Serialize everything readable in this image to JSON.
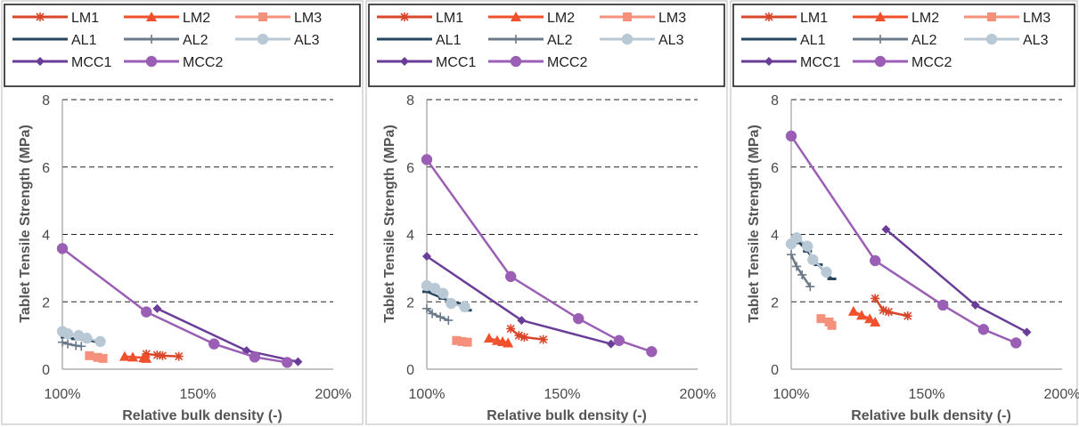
{
  "series_styles": {
    "LM1": {
      "color": "#d9472b",
      "marker": "star"
    },
    "LM2": {
      "color": "#f0502c",
      "marker": "triangle"
    },
    "LM3": {
      "color": "#f4907b",
      "marker": "square"
    },
    "AL1": {
      "color": "#26465f",
      "marker": "dash"
    },
    "AL2": {
      "color": "#6b7a8a",
      "marker": "plus"
    },
    "AL3": {
      "color": "#b8c8d4",
      "marker": "circle"
    },
    "MCC1": {
      "color": "#6a3d99",
      "marker": "diamond"
    },
    "MCC2": {
      "color": "#9a5fb5",
      "marker": "circle"
    }
  },
  "chart_data": [
    {
      "type": "line",
      "xlabel": "Relative bulk density (-)",
      "ylabel": "Tablet Tensile Strength (MPa)",
      "xlim": [
        1.0,
        2.0
      ],
      "ylim": [
        0,
        8
      ],
      "xticks": [
        "100%",
        "150%",
        "200%"
      ],
      "yticks": [
        "0",
        "2",
        "4",
        "6",
        "8"
      ],
      "grid": "horizontal dashed",
      "legend": [
        "LM1",
        "LM2",
        "LM3",
        "AL1",
        "AL2",
        "AL3",
        "MCC1",
        "MCC2"
      ],
      "legend_position": "top",
      "series": [
        {
          "name": "LM1",
          "x": [
            1.31,
            1.35,
            1.37,
            1.43
          ],
          "y": [
            0.45,
            0.42,
            0.4,
            0.38
          ]
        },
        {
          "name": "LM2",
          "x": [
            1.23,
            1.26,
            1.3,
            1.31
          ],
          "y": [
            0.38,
            0.36,
            0.34,
            0.32
          ]
        },
        {
          "name": "LM3",
          "x": [
            1.1,
            1.13,
            1.15
          ],
          "y": [
            0.4,
            0.35,
            0.32
          ]
        },
        {
          "name": "AL1",
          "x": [
            1.01,
            1.05,
            1.1,
            1.14
          ],
          "y": [
            0.95,
            0.9,
            0.85,
            0.78
          ]
        },
        {
          "name": "AL2",
          "x": [
            1.0,
            1.02,
            1.05,
            1.07
          ],
          "y": [
            0.8,
            0.75,
            0.7,
            0.68
          ]
        },
        {
          "name": "AL3",
          "x": [
            1.0,
            1.02,
            1.06,
            1.09,
            1.14
          ],
          "y": [
            1.12,
            1.05,
            1.0,
            0.92,
            0.82
          ]
        },
        {
          "name": "MCC1",
          "x": [
            1.35,
            1.68,
            1.87
          ],
          "y": [
            1.8,
            0.55,
            0.22
          ]
        },
        {
          "name": "MCC2",
          "x": [
            1.0,
            1.31,
            1.56,
            1.71,
            1.83
          ],
          "y": [
            3.58,
            1.7,
            0.75,
            0.36,
            0.2
          ]
        }
      ]
    },
    {
      "type": "line",
      "xlabel": "Relative bulk density (-)",
      "ylabel": "Tablet Tensile Strength (MPa)",
      "xlim": [
        1.0,
        2.0
      ],
      "ylim": [
        0,
        8
      ],
      "xticks": [
        "100%",
        "150%",
        "200%"
      ],
      "yticks": [
        "0",
        "2",
        "4",
        "6",
        "8"
      ],
      "grid": "horizontal dashed",
      "legend": [
        "LM1",
        "LM2",
        "LM3",
        "AL1",
        "AL2",
        "AL3",
        "MCC1",
        "MCC2"
      ],
      "legend_position": "top",
      "series": [
        {
          "name": "LM1",
          "x": [
            1.31,
            1.34,
            1.36,
            1.43
          ],
          "y": [
            1.2,
            1.0,
            0.95,
            0.88
          ]
        },
        {
          "name": "LM2",
          "x": [
            1.23,
            1.26,
            1.28,
            1.3
          ],
          "y": [
            0.92,
            0.85,
            0.82,
            0.78
          ]
        },
        {
          "name": "LM3",
          "x": [
            1.11,
            1.13,
            1.15
          ],
          "y": [
            0.85,
            0.82,
            0.8
          ]
        },
        {
          "name": "AL1",
          "x": [
            1.0,
            1.06,
            1.11,
            1.15
          ],
          "y": [
            2.3,
            2.1,
            1.95,
            1.75
          ]
        },
        {
          "name": "AL2",
          "x": [
            1.0,
            1.02,
            1.05,
            1.08
          ],
          "y": [
            1.8,
            1.65,
            1.55,
            1.45
          ]
        },
        {
          "name": "AL3",
          "x": [
            1.0,
            1.03,
            1.06,
            1.09,
            1.14
          ],
          "y": [
            2.48,
            2.4,
            2.25,
            1.95,
            1.85
          ]
        },
        {
          "name": "MCC1",
          "x": [
            1.0,
            1.35,
            1.68
          ],
          "y": [
            3.35,
            1.45,
            0.75
          ]
        },
        {
          "name": "MCC2",
          "x": [
            1.0,
            1.31,
            1.56,
            1.71,
            1.83
          ],
          "y": [
            6.22,
            2.75,
            1.5,
            0.85,
            0.52
          ]
        }
      ]
    },
    {
      "type": "line",
      "xlabel": "Relative bulk density (-)",
      "ylabel": "Tablet Tensile Strength (MPa)",
      "xlim": [
        1.0,
        2.0
      ],
      "ylim": [
        0,
        8
      ],
      "xticks": [
        "100%",
        "150%",
        "200%"
      ],
      "yticks": [
        "0",
        "2",
        "4",
        "6",
        "8"
      ],
      "grid": "horizontal dashed",
      "legend": [
        "LM1",
        "LM2",
        "LM3",
        "AL1",
        "AL2",
        "AL3",
        "MCC1",
        "MCC2"
      ],
      "legend_position": "top",
      "series": [
        {
          "name": "LM1",
          "x": [
            1.31,
            1.34,
            1.36,
            1.43
          ],
          "y": [
            2.1,
            1.75,
            1.7,
            1.58
          ]
        },
        {
          "name": "LM2",
          "x": [
            1.23,
            1.26,
            1.29,
            1.31
          ],
          "y": [
            1.72,
            1.6,
            1.5,
            1.4
          ]
        },
        {
          "name": "LM3",
          "x": [
            1.11,
            1.14,
            1.15
          ],
          "y": [
            1.5,
            1.4,
            1.3
          ]
        },
        {
          "name": "AL1",
          "x": [
            1.03,
            1.06,
            1.1,
            1.15
          ],
          "y": [
            3.75,
            3.5,
            3.1,
            2.68
          ]
        },
        {
          "name": "AL2",
          "x": [
            1.0,
            1.02,
            1.04,
            1.07
          ],
          "y": [
            3.4,
            3.05,
            2.8,
            2.45
          ]
        },
        {
          "name": "AL3",
          "x": [
            1.0,
            1.02,
            1.06,
            1.08,
            1.13
          ],
          "y": [
            3.72,
            3.9,
            3.65,
            3.25,
            2.88
          ]
        },
        {
          "name": "MCC1",
          "x": [
            1.35,
            1.68,
            1.87
          ],
          "y": [
            4.15,
            1.9,
            1.1
          ]
        },
        {
          "name": "MCC2",
          "x": [
            1.0,
            1.31,
            1.56,
            1.71,
            1.83
          ],
          "y": [
            6.92,
            3.22,
            1.9,
            1.18,
            0.78
          ]
        }
      ]
    }
  ]
}
